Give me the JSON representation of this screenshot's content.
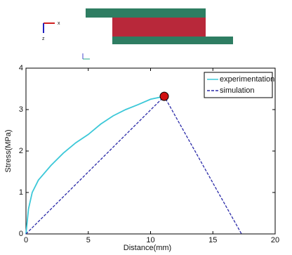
{
  "diagram": {
    "axis_labels": [
      "x",
      "z"
    ]
  },
  "chart_data": {
    "type": "line",
    "x_label": "Distance(mm)",
    "y_label": "Stress(MPa)",
    "xlim": [
      0,
      20
    ],
    "ylim": [
      0,
      4
    ],
    "xticks": [
      0,
      5,
      10,
      15,
      20
    ],
    "yticks": [
      0,
      1,
      2,
      3,
      4
    ],
    "legend": "upper right",
    "series": [
      {
        "name": "experimentation",
        "color": "#3cc8d8",
        "dash": false,
        "x": [
          0,
          0.2,
          0.5,
          1,
          2,
          3,
          4,
          5,
          6,
          7,
          8,
          9,
          10,
          11.1
        ],
        "values": [
          0,
          0.6,
          1.0,
          1.3,
          1.65,
          1.95,
          2.2,
          2.4,
          2.65,
          2.85,
          3.0,
          3.12,
          3.25,
          3.32
        ]
      },
      {
        "name": "simulation",
        "color": "#2a2aa8",
        "dash": true,
        "marker_index": 1,
        "marker_color": "#d01010",
        "x": [
          0,
          11.1,
          17.3
        ],
        "values": [
          0,
          3.32,
          0
        ]
      }
    ]
  }
}
